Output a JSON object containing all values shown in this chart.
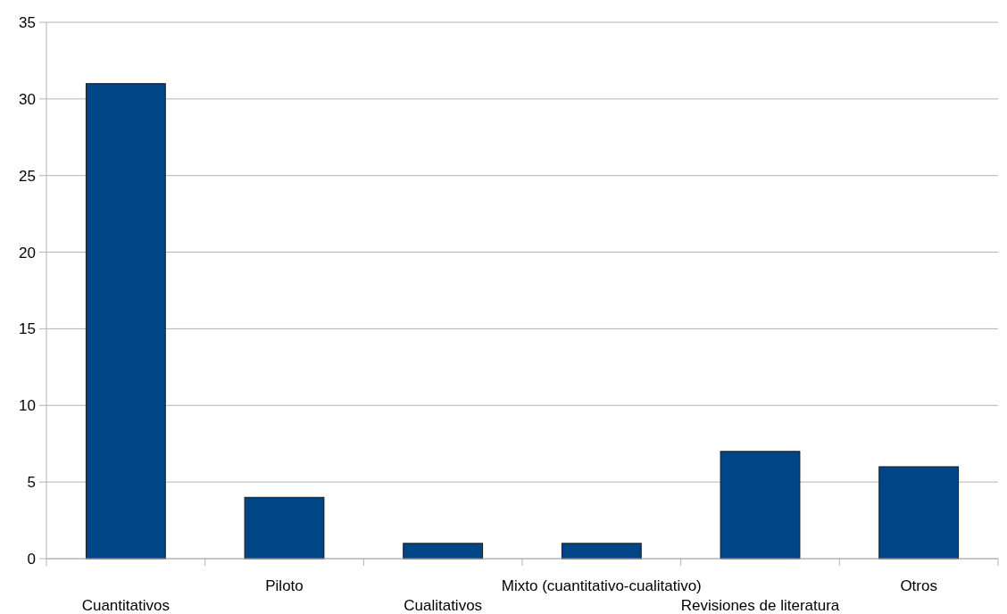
{
  "chart_data": {
    "type": "bar",
    "categories": [
      "Cuantitativos",
      "Piloto",
      "Cualitativos",
      "Mixto (cuantitativo-cualitativo)",
      "Revisiones de literatura",
      "Otros"
    ],
    "values": [
      31,
      4,
      1,
      1,
      7,
      6
    ],
    "color": "#004586",
    "ylim": [
      0,
      35
    ],
    "yticks": [
      0,
      5,
      10,
      15,
      20,
      25,
      30,
      35
    ],
    "grid": "y"
  }
}
